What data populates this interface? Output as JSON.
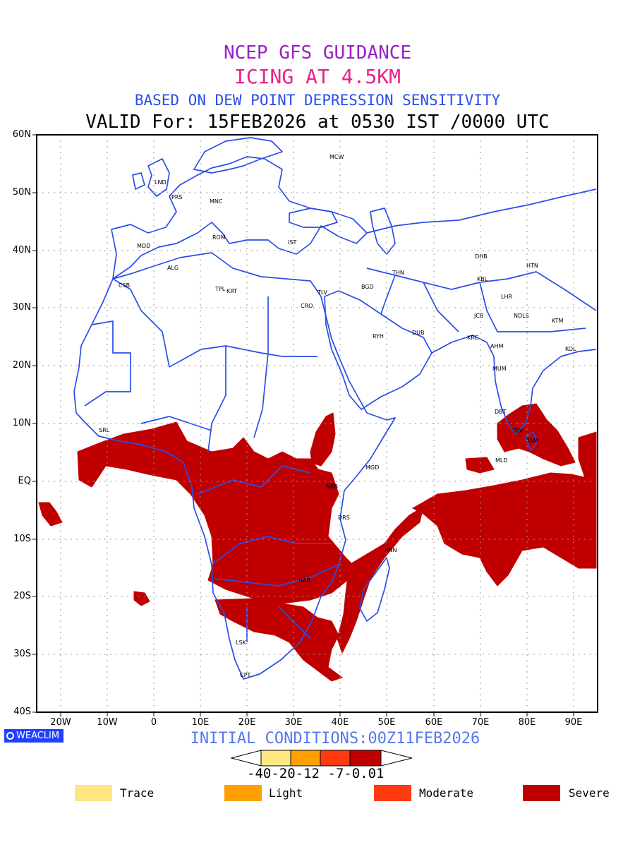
{
  "titles": {
    "line1": "NCEP GFS GUIDANCE",
    "line2": "ICING AT 4.5KM",
    "line3": "BASED ON DEW POINT DEPRESSION SENSITIVITY",
    "line4": "VALID For: 15FEB2026 at 0530 IST /0000 UTC"
  },
  "colors": {
    "title1": "#9b20c8",
    "title2": "#e8238a",
    "title3": "#2a4de8",
    "border": "#2a4de8",
    "init": "#5577ee",
    "trace": "#ffe680",
    "light": "#ffa000",
    "moderate": "#ff3a10",
    "severe": "#c00000"
  },
  "axes": {
    "lat_labels": [
      "60N",
      "50N",
      "40N",
      "30N",
      "20N",
      "10N",
      "EQ",
      "10S",
      "20S",
      "30S",
      "40S"
    ],
    "lon_labels": [
      "20W",
      "10W",
      "0",
      "10E",
      "20E",
      "30E",
      "40E",
      "50E",
      "60E",
      "70E",
      "80E",
      "90E"
    ]
  },
  "cities": [
    "MCW",
    "LND",
    "PRS",
    "MNC",
    "MDD",
    "ROM",
    "IST",
    "ALG",
    "CSB",
    "TPL",
    "KRT",
    "CRO",
    "TLV",
    "BGD",
    "THN",
    "DHB",
    "HTN",
    "KBL",
    "LHR",
    "JCB",
    "NDLS",
    "KTM",
    "DUB",
    "RYH",
    "KRC",
    "AHM",
    "KOL",
    "MUM",
    "DBT",
    "TRV",
    "TAM",
    "MLD",
    "SRL",
    "MGD",
    "NRB",
    "DRS",
    "ANN",
    "LSK",
    "CPT",
    "HAR"
  ],
  "branding": {
    "logo": "WEACLIM"
  },
  "initial_conditions": "INITIAL CONDITIONS:00Z11FEB2026",
  "colorbar": {
    "labels": "-40-20-12 -7-0.01"
  },
  "legend": [
    {
      "label": "Trace",
      "color": "#ffe680"
    },
    {
      "label": "Light",
      "color": "#ffa000"
    },
    {
      "label": "Moderate",
      "color": "#ff3a10"
    },
    {
      "label": "Severe",
      "color": "#c00000"
    }
  ]
}
